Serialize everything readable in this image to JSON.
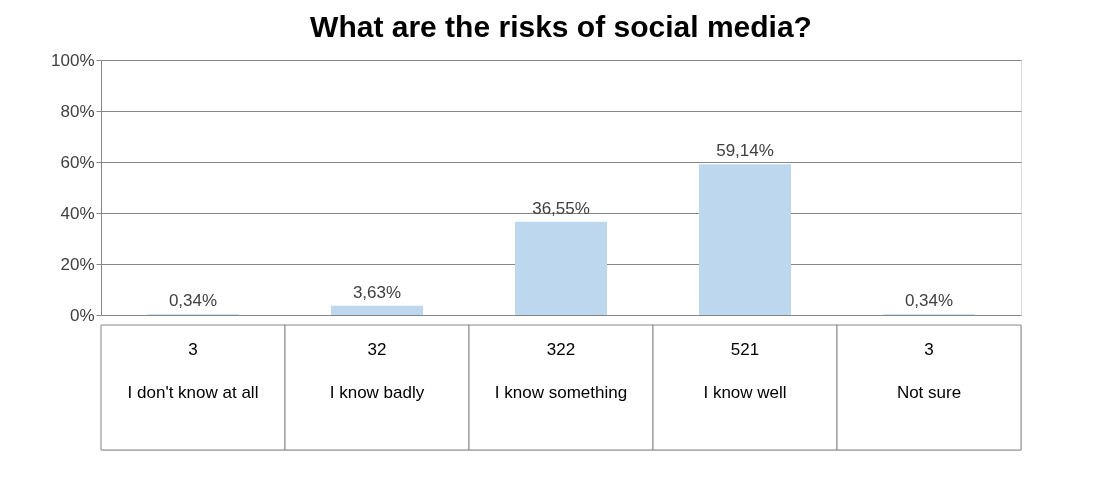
{
  "chart_data": {
    "type": "bar",
    "title": "What are the risks of social media?",
    "categories": [
      "I don't know at all",
      "I know badly",
      "I know something",
      "I know well",
      "Not sure"
    ],
    "values": [
      0.34,
      3.63,
      36.55,
      59.14,
      0.34
    ],
    "value_labels": [
      "0,34%",
      "3,63%",
      "36,55%",
      "59,14%",
      "0,34%"
    ],
    "color": "#bdd7ee",
    "ylim": [
      0,
      100
    ],
    "yticks": [
      {
        "value": 0,
        "label": "0%"
      },
      {
        "value": 20,
        "label": "20%"
      },
      {
        "value": 40,
        "label": "40%"
      },
      {
        "value": 60,
        "label": "60%"
      },
      {
        "value": 80,
        "label": "80%"
      },
      {
        "value": 100,
        "label": "100%"
      }
    ],
    "grid": "y",
    "annotations": [
      "3",
      "32",
      "322",
      "521",
      "3"
    ]
  }
}
